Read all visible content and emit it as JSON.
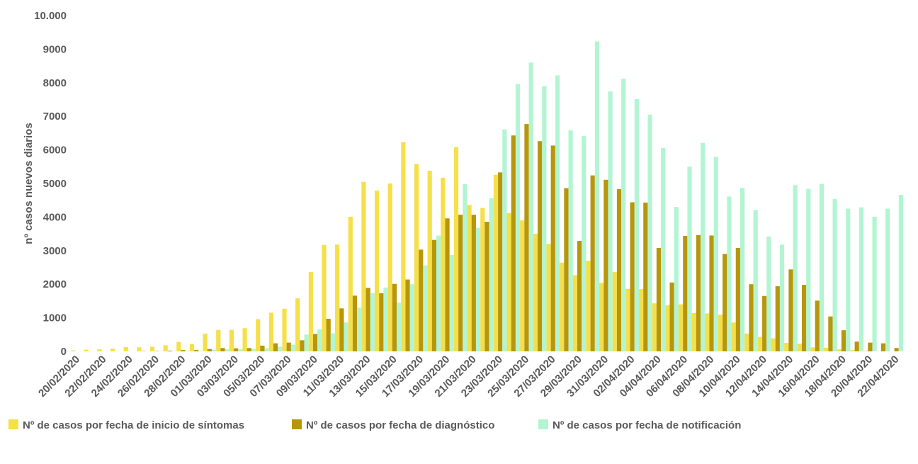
{
  "chart_data": {
    "type": "bar",
    "ylabel": "nº casos nuevos diarios",
    "categories": [
      "20/02/2020",
      null,
      "22/02/2020",
      null,
      "24/02/2020",
      null,
      "26/02/2020",
      null,
      "28/02/2020",
      null,
      "01/03/2020",
      null,
      "03/03/2020",
      null,
      "05/03/2020",
      null,
      "07/03/2020",
      null,
      "09/03/2020",
      null,
      "11/03/2020",
      null,
      "13/03/2020",
      null,
      "15/03/2020",
      null,
      "17/03/2020",
      null,
      "19/03/2020",
      null,
      "21/03/2020",
      null,
      "23/03/2020",
      null,
      "25/03/2020",
      null,
      "27/03/2020",
      null,
      "29/03/2020",
      null,
      "31/03/2020",
      null,
      "02/04/2020",
      null,
      "04/04/2020",
      null,
      "06/04/2020",
      null,
      "08/04/2020",
      null,
      "10/04/2020",
      null,
      "12/04/2020",
      null,
      "14/04/2020",
      null,
      "16/04/2020",
      null,
      "18/04/2020",
      null,
      "20/04/2020",
      null,
      "22/04/2020"
    ],
    "series": [
      {
        "name": "Nº de casos por fecha de inicio de síntomas",
        "color": "#f5e04b",
        "values": [
          30,
          50,
          60,
          80,
          130,
          120,
          140,
          180,
          280,
          220,
          530,
          640,
          640,
          690,
          960,
          1150,
          1270,
          1580,
          2360,
          3170,
          3180,
          4010,
          5050,
          4790,
          5000,
          6230,
          5580,
          5380,
          5170,
          6080,
          4360,
          4270,
          5260,
          4120,
          3900,
          3500,
          3200,
          2640,
          2270,
          2700,
          2040,
          2360,
          1860,
          1860,
          1430,
          1370,
          1400,
          1140,
          1130,
          1090,
          860,
          530,
          430,
          390,
          250,
          230,
          120,
          110,
          60,
          40,
          20,
          10,
          5
        ]
      },
      {
        "name": "Nº de casos por fecha de diagnóstico",
        "color": "#b8960c",
        "values": [
          0,
          0,
          0,
          0,
          0,
          10,
          10,
          20,
          40,
          40,
          70,
          100,
          90,
          100,
          170,
          240,
          260,
          330,
          520,
          970,
          1280,
          1660,
          1890,
          1730,
          2010,
          2140,
          3030,
          3320,
          3960,
          4070,
          4070,
          3860,
          5330,
          6430,
          6770,
          6260,
          6130,
          4860,
          3290,
          5240,
          5110,
          4830,
          4440,
          4430,
          3080,
          2050,
          3440,
          3460,
          3450,
          2900,
          3080,
          2000,
          1650,
          1940,
          2440,
          1980,
          1510,
          1040,
          630,
          290,
          260,
          240,
          100
        ]
      },
      {
        "name": "Nº de casos por fecha de notificación",
        "color": "#b3f5d3",
        "values": [
          0,
          0,
          0,
          0,
          0,
          0,
          0,
          0,
          10,
          20,
          50,
          60,
          60,
          70,
          90,
          140,
          200,
          500,
          660,
          540,
          860,
          1300,
          1730,
          1900,
          1450,
          2000,
          2560,
          3450,
          2870,
          4980,
          3680,
          4560,
          6610,
          7960,
          8600,
          7900,
          8220,
          6580,
          6410,
          9230,
          7740,
          8120,
          7510,
          7050,
          6060,
          4300,
          5500,
          6210,
          5790,
          4610,
          4870,
          4210,
          3420,
          3180,
          4950,
          4840,
          4990,
          4540,
          4250,
          4290,
          4010,
          4250,
          4660
        ]
      }
    ],
    "ylim": [
      0,
      10000
    ],
    "yticks": [
      0,
      1000,
      2000,
      3000,
      4000,
      5000,
      6000,
      7000,
      8000,
      9000,
      {
        "value": 10000,
        "label": "10.000"
      }
    ],
    "grid": false,
    "legend": "bottom"
  }
}
